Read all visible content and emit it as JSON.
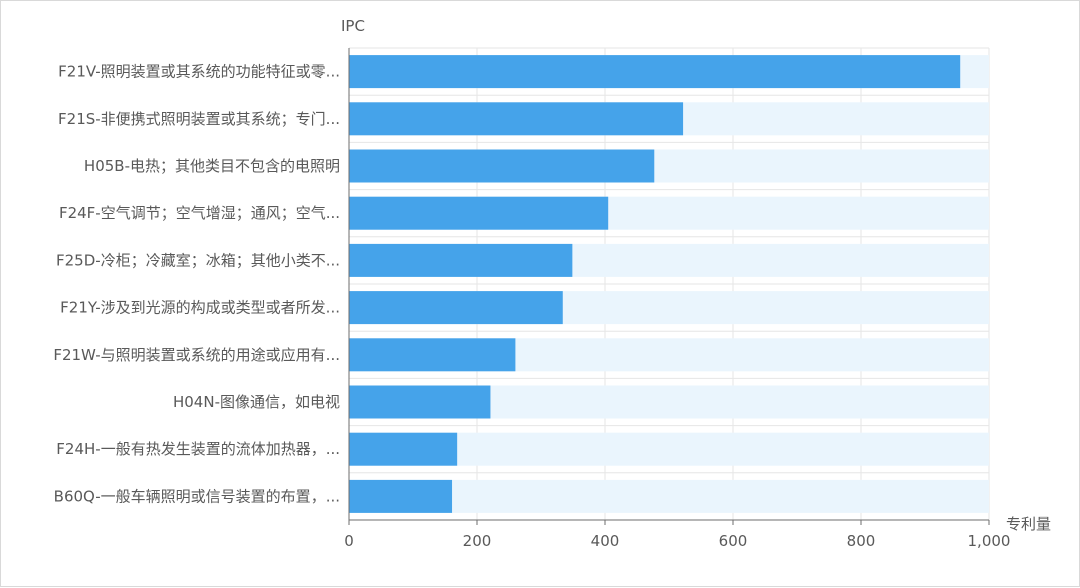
{
  "chart_data": {
    "type": "bar",
    "orientation": "horizontal",
    "categories": [
      "F21V-照明装置或其系统的功能特征或零...",
      "F21S-非便携式照明装置或其系统；专门...",
      "H05B-电热；其他类目不包含的电照明",
      "F24F-空气调节；空气增湿；通风；空气...",
      "F25D-冷柜；冷藏室；冰箱；其他小类不...",
      "F21Y-涉及到光源的构成或类型或者所发...",
      "F21W-与照明装置或系统的用途或应用有...",
      "H04N-图像通信，如电视",
      "F24H-一般有热发生装置的流体加热器，...",
      "B60Q-一般车辆照明或信号装置的布置，..."
    ],
    "values": [
      955,
      522,
      477,
      405,
      349,
      334,
      260,
      221,
      169,
      161
    ],
    "xlabel": "专利量",
    "ylabel": "IPC",
    "xlim": [
      0,
      1000
    ],
    "x_ticks": [
      0,
      200,
      400,
      600,
      800,
      1000
    ],
    "x_tick_labels": [
      "0",
      "200",
      "400",
      "600",
      "800",
      "1,000"
    ],
    "grid": true,
    "show_background_bars": true,
    "colors": {
      "bar": "#45a3ea",
      "background_bar": "#eaf5fd",
      "grid": "#e6e6e6",
      "axis": "#6e6e6e",
      "text": "#595959"
    }
  }
}
